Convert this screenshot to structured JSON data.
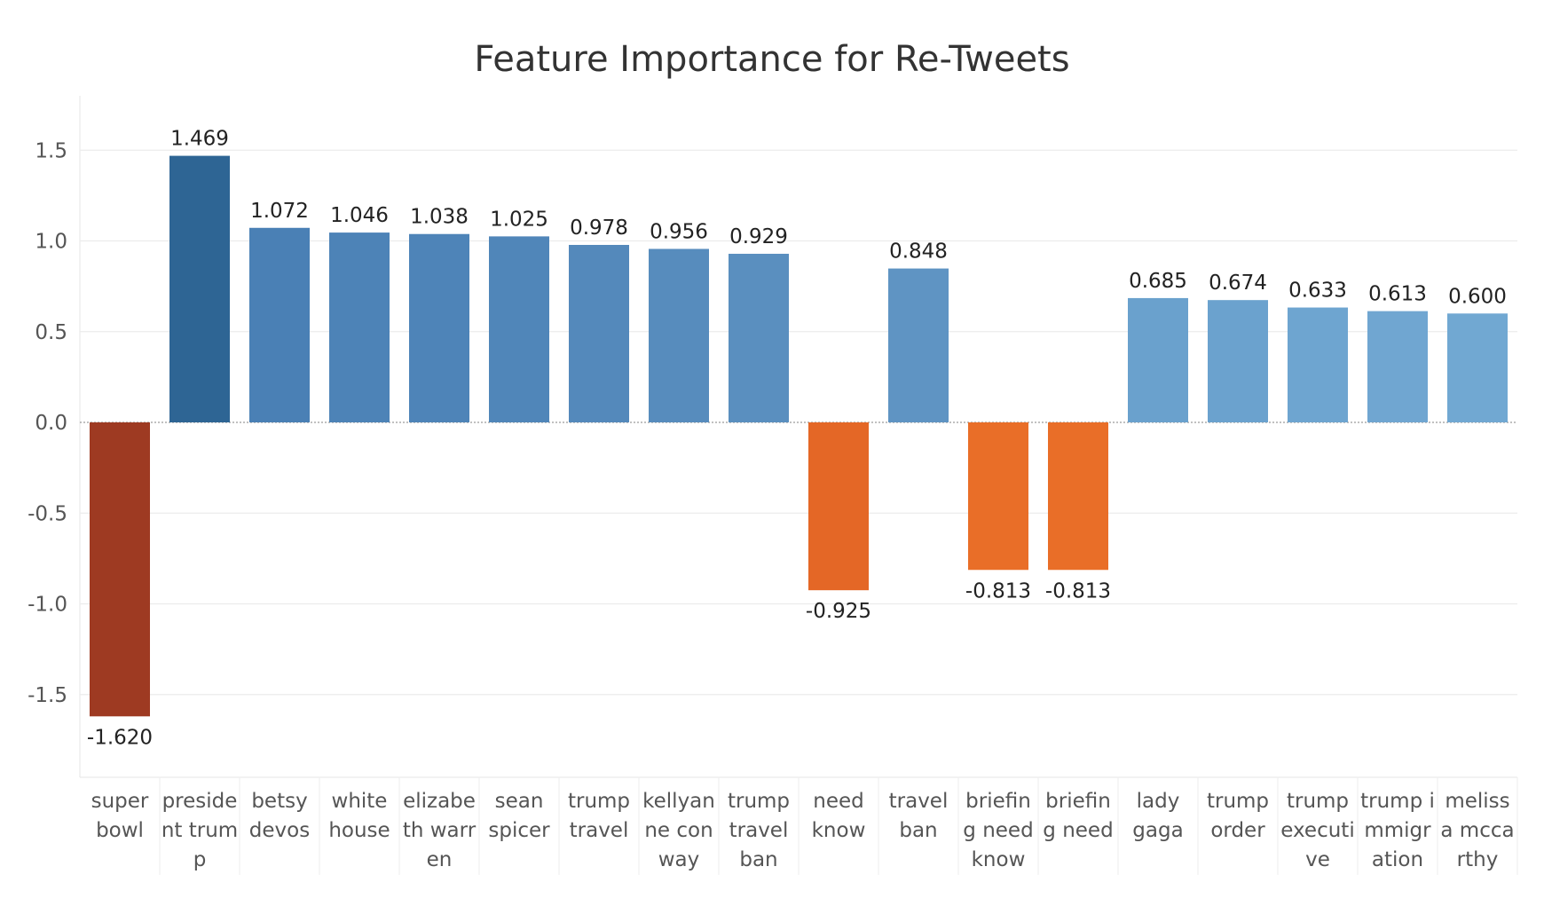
{
  "chart_data": {
    "type": "bar",
    "title": "Feature Importance for Re-Tweets",
    "xlabel": "",
    "ylabel": "",
    "ylim": [
      -1.95,
      1.7
    ],
    "yticks": [
      1.5,
      1.0,
      0.5,
      0.0,
      -0.5,
      -1.0,
      -1.5
    ],
    "ytick_labels": [
      "1.5",
      "1.0",
      "0.5",
      "0.0",
      "-0.5",
      "-1.0",
      "-1.5"
    ],
    "grid": true,
    "legend": "none",
    "categories": [
      {
        "lines": [
          "super",
          "bowl"
        ]
      },
      {
        "lines": [
          "preside",
          "nt trum",
          "p"
        ]
      },
      {
        "lines": [
          "betsy",
          "devos"
        ]
      },
      {
        "lines": [
          "white",
          "house"
        ]
      },
      {
        "lines": [
          "elizabe",
          "th warr",
          "en"
        ]
      },
      {
        "lines": [
          "sean",
          "spicer"
        ]
      },
      {
        "lines": [
          "trump",
          "travel"
        ]
      },
      {
        "lines": [
          "kellyan",
          "ne con",
          "way"
        ]
      },
      {
        "lines": [
          "trump",
          "travel",
          "ban"
        ]
      },
      {
        "lines": [
          "need",
          "know"
        ]
      },
      {
        "lines": [
          "travel",
          "ban"
        ]
      },
      {
        "lines": [
          "briefin",
          "g need",
          "know"
        ]
      },
      {
        "lines": [
          "briefin",
          "g need"
        ]
      },
      {
        "lines": [
          "lady",
          "gaga"
        ]
      },
      {
        "lines": [
          "trump",
          "order"
        ]
      },
      {
        "lines": [
          "trump",
          "executi",
          "ve"
        ]
      },
      {
        "lines": [
          "trump i",
          "mmigr",
          "ation"
        ]
      },
      {
        "lines": [
          "meliss",
          "a mcca",
          "rthy"
        ]
      }
    ],
    "values": [
      -1.62,
      1.469,
      1.072,
      1.046,
      1.038,
      1.025,
      0.978,
      0.956,
      0.929,
      -0.925,
      0.848,
      -0.813,
      -0.813,
      0.685,
      0.674,
      0.633,
      0.613,
      0.6
    ],
    "value_labels": [
      "-1.620",
      "1.469",
      "1.072",
      "1.046",
      "1.038",
      "1.025",
      "0.978",
      "0.956",
      "0.929",
      "-0.925",
      "0.848",
      "-0.813",
      "-0.813",
      "0.685",
      "0.674",
      "0.633",
      "0.613",
      "0.600"
    ],
    "colors": [
      "#9e3a22",
      "#2e6594",
      "#4a80b5",
      "#4d83b7",
      "#4e84b8",
      "#5086b9",
      "#5489bb",
      "#578cbd",
      "#5a8fbf",
      "#e46726",
      "#5f94c3",
      "#e96e28",
      "#e96e28",
      "#6aa1cd",
      "#6ba2ce",
      "#6ea5d0",
      "#70a6d1",
      "#71a8d2"
    ]
  }
}
